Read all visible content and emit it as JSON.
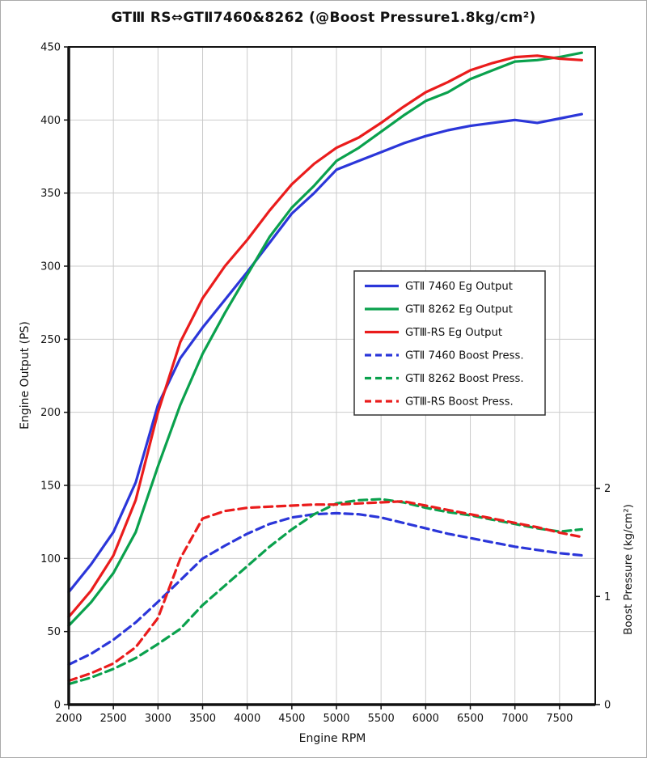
{
  "figure": {
    "background": "#ffffff",
    "border_color": "#aaaaaa",
    "grid_color": "#cbcbcb",
    "frame_color": "#111111"
  },
  "chart_data": {
    "type": "line",
    "title": "GTⅢ RS⇔GTⅡ7460&8262 (@Boost Pressure1.8kg/cm²)",
    "xlabel": "Engine RPM",
    "ylabel_left": "Engine Output (PS)",
    "ylabel_right": "Boost Pressure (kg/cm²)",
    "grid": true,
    "legend_position": "middle-right",
    "x_axis": {
      "min": 2000,
      "max": 7900,
      "ticks": [
        2000,
        2500,
        3000,
        3500,
        4000,
        4500,
        5000,
        5500,
        6000,
        6500,
        7000,
        7500
      ]
    },
    "y_axis_left": {
      "min": 0,
      "max": 450,
      "ticks": [
        0,
        50,
        100,
        150,
        200,
        250,
        300,
        350,
        400,
        450
      ]
    },
    "y_axis_right": {
      "ticks": [
        0,
        1,
        2
      ],
      "ps_per_unit": 74
    },
    "x": [
      2000,
      2250,
      2500,
      2750,
      3000,
      3250,
      3500,
      3750,
      4000,
      4250,
      4500,
      4750,
      5000,
      5250,
      5500,
      5750,
      6000,
      6250,
      6500,
      6750,
      7000,
      7250,
      7500,
      7750
    ],
    "series": [
      {
        "name": "GTⅡ 7460 Eg Output",
        "color": "#2b36d9",
        "style": "solid",
        "axis": "left",
        "values": [
          77,
          96,
          118,
          152,
          205,
          237,
          258,
          277,
          296,
          316,
          336,
          350,
          366,
          372,
          378,
          384,
          389,
          393,
          396,
          398,
          400,
          398,
          401,
          404
        ]
      },
      {
        "name": "GTⅡ 8262 Eg Output",
        "color": "#0aa14d",
        "style": "solid",
        "axis": "left",
        "values": [
          54,
          70,
          90,
          118,
          163,
          205,
          240,
          268,
          294,
          320,
          340,
          355,
          372,
          381,
          392,
          403,
          413,
          419,
          428,
          434,
          440,
          441,
          443,
          446
        ]
      },
      {
        "name": "GTⅢ-RS Eg Output",
        "color": "#ea1c1c",
        "style": "solid",
        "axis": "left",
        "values": [
          60,
          78,
          102,
          140,
          200,
          248,
          278,
          300,
          318,
          338,
          356,
          370,
          381,
          388,
          398,
          409,
          419,
          426,
          434,
          439,
          443,
          444,
          442,
          441
        ]
      },
      {
        "name": "GTⅡ 7460 Boost Press.",
        "color": "#2b36d9",
        "style": "dashed",
        "axis": "right",
        "values": [
          0.37,
          0.47,
          0.6,
          0.76,
          0.95,
          1.15,
          1.35,
          1.47,
          1.58,
          1.67,
          1.73,
          1.76,
          1.77,
          1.76,
          1.73,
          1.68,
          1.63,
          1.58,
          1.54,
          1.5,
          1.46,
          1.43,
          1.4,
          1.38
        ]
      },
      {
        "name": "GTⅡ 8262 Boost Press.",
        "color": "#0aa14d",
        "style": "dashed",
        "axis": "right",
        "values": [
          0.19,
          0.25,
          0.33,
          0.43,
          0.56,
          0.7,
          0.92,
          1.1,
          1.28,
          1.46,
          1.62,
          1.76,
          1.86,
          1.89,
          1.9,
          1.87,
          1.82,
          1.78,
          1.75,
          1.71,
          1.67,
          1.63,
          1.6,
          1.62
        ]
      },
      {
        "name": "GTⅢ-RS Boost Press.",
        "color": "#ea1c1c",
        "style": "dashed",
        "axis": "right",
        "values": [
          0.22,
          0.29,
          0.38,
          0.53,
          0.8,
          1.35,
          1.72,
          1.79,
          1.82,
          1.83,
          1.84,
          1.85,
          1.85,
          1.86,
          1.87,
          1.88,
          1.84,
          1.8,
          1.76,
          1.72,
          1.68,
          1.64,
          1.59,
          1.55
        ]
      }
    ]
  }
}
